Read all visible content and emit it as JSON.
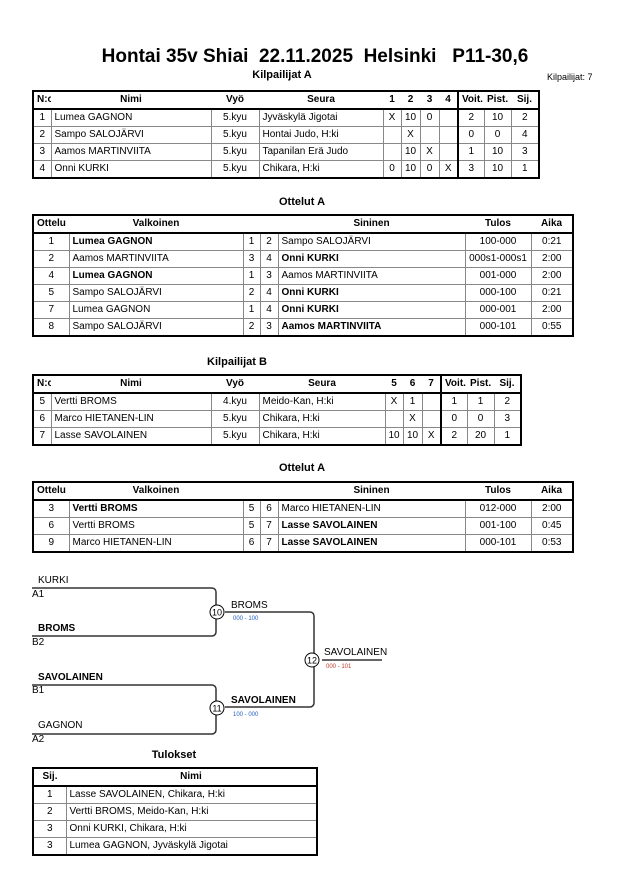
{
  "title": "Hontai 35v Shiai  22.11.2025  Helsinki   P11-30,6",
  "competitors_count": "Kilpailijat: 7",
  "pool_a": {
    "heading": "Kilpailijat A",
    "headers": [
      "N:o",
      "Nimi",
      "Vyö",
      "Seura",
      "1",
      "2",
      "3",
      "4",
      "Voit.",
      "Pist.",
      "Sij."
    ],
    "rows": [
      [
        "1",
        "Lumea GAGNON",
        "5.kyu",
        "Jyväskylä Jigotai",
        "X",
        "10",
        "0",
        "",
        "2",
        "10",
        "2"
      ],
      [
        "2",
        "Sampo SALOJÄRVI",
        "5.kyu",
        "Hontai Judo, H:ki",
        "",
        "X",
        "",
        "",
        "0",
        "0",
        "4"
      ],
      [
        "3",
        "Aamos MARTINVIITA",
        "5.kyu",
        "Tapanilan Erä Judo",
        "",
        "10",
        "X",
        "",
        "1",
        "10",
        "3"
      ],
      [
        "4",
        "Onni KURKI",
        "5.kyu",
        "Chikara, H:ki",
        "0",
        "10",
        "0",
        "X",
        "3",
        "10",
        "1"
      ]
    ]
  },
  "matches_a": {
    "heading": "Ottelut A",
    "headers": [
      "Ottelu",
      "Valkoinen",
      "",
      "",
      "Sininen",
      "Tulos",
      "Aika"
    ],
    "rows": [
      {
        "cells": [
          "1",
          "Lumea GAGNON",
          "1",
          "2",
          "Sampo SALOJÄRVI",
          "100-000",
          "0:21"
        ],
        "winner": "white"
      },
      {
        "cells": [
          "2",
          "Aamos MARTINVIITA",
          "3",
          "4",
          "Onni KURKI",
          "000s1-000s1",
          "2:00"
        ],
        "winner": "blue"
      },
      {
        "cells": [
          "4",
          "Lumea GAGNON",
          "1",
          "3",
          "Aamos MARTINVIITA",
          "001-000",
          "2:00"
        ],
        "winner": "white"
      },
      {
        "cells": [
          "5",
          "Sampo SALOJÄRVI",
          "2",
          "4",
          "Onni KURKI",
          "000-100",
          "0:21"
        ],
        "winner": "blue"
      },
      {
        "cells": [
          "7",
          "Lumea GAGNON",
          "1",
          "4",
          "Onni KURKI",
          "000-001",
          "2:00"
        ],
        "winner": "blue"
      },
      {
        "cells": [
          "8",
          "Sampo SALOJÄRVI",
          "2",
          "3",
          "Aamos MARTINVIITA",
          "000-101",
          "0:55"
        ],
        "winner": "blue"
      }
    ]
  },
  "pool_b": {
    "heading": "Kilpailijat B",
    "headers": [
      "N:o",
      "Nimi",
      "Vyö",
      "Seura",
      "5",
      "6",
      "7",
      "Voit.",
      "Pist.",
      "Sij."
    ],
    "rows": [
      [
        "5",
        "Vertti BROMS",
        "4.kyu",
        "Meido-Kan, H:ki",
        "X",
        "1",
        "",
        "1",
        "1",
        "2"
      ],
      [
        "6",
        "Marco HIETANEN-LIN",
        "5.kyu",
        "Chikara, H:ki",
        "",
        "X",
        "",
        "0",
        "0",
        "3"
      ],
      [
        "7",
        "Lasse SAVOLAINEN",
        "5.kyu",
        "Chikara, H:ki",
        "10",
        "10",
        "X",
        "2",
        "20",
        "1"
      ]
    ]
  },
  "matches_b": {
    "heading": "Ottelut A",
    "headers": [
      "Ottelu",
      "Valkoinen",
      "",
      "",
      "Sininen",
      "Tulos",
      "Aika"
    ],
    "rows": [
      {
        "cells": [
          "3",
          "Vertti BROMS",
          "5",
          "6",
          "Marco HIETANEN-LIN",
          "012-000",
          "2:00"
        ],
        "winner": "white"
      },
      {
        "cells": [
          "6",
          "Vertti BROMS",
          "5",
          "7",
          "Lasse SAVOLAINEN",
          "001-100",
          "0:45"
        ],
        "winner": "blue"
      },
      {
        "cells": [
          "9",
          "Marco HIETANEN-LIN",
          "6",
          "7",
          "Lasse SAVOLAINEN",
          "000-101",
          "0:53"
        ],
        "winner": "blue"
      }
    ]
  },
  "bracket": {
    "entries": [
      {
        "name": "KURKI",
        "seed": "A1",
        "bold": false
      },
      {
        "name": "BROMS",
        "seed": "B2",
        "bold": true
      },
      {
        "name": "SAVOLAINEN",
        "seed": "B1",
        "bold": true
      },
      {
        "name": "GAGNON",
        "seed": "A2",
        "bold": false
      }
    ],
    "semis": [
      {
        "match": "10",
        "winner": "BROMS",
        "score": "000 - 100",
        "bold": false,
        "score_color": "#1f5fbf"
      },
      {
        "match": "11",
        "winner": "SAVOLAINEN",
        "score": "100 - 000",
        "bold": true,
        "score_color": "#1f5fbf"
      }
    ],
    "final": {
      "match": "12",
      "winner": "SAVOLAINEN",
      "score": "000 - 101",
      "score_color": "#c0392b"
    }
  },
  "results": {
    "heading": "Tulokset",
    "headers": [
      "Sij.",
      "Nimi"
    ],
    "rows": [
      [
        "1",
        "Lasse SAVOLAINEN, Chikara, H:ki"
      ],
      [
        "2",
        "Vertti BROMS, Meido-Kan, H:ki"
      ],
      [
        "3",
        "Onni KURKI, Chikara, H:ki"
      ],
      [
        "3",
        "Lumea GAGNON, Jyväskylä Jigotai"
      ]
    ]
  }
}
